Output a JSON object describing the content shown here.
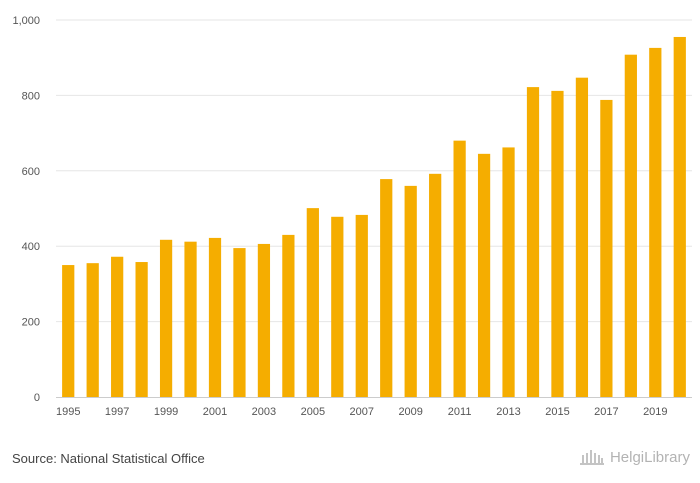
{
  "chart_data": {
    "type": "bar",
    "title": "",
    "xlabel": "",
    "ylabel": "",
    "x": [
      1995,
      1996,
      1997,
      1998,
      1999,
      2000,
      2001,
      2002,
      2003,
      2004,
      2005,
      2006,
      2007,
      2008,
      2009,
      2010,
      2011,
      2012,
      2013,
      2014,
      2015,
      2016,
      2017,
      2018,
      2019,
      2020
    ],
    "values": [
      350,
      355,
      372,
      358,
      417,
      412,
      422,
      395,
      406,
      430,
      501,
      478,
      483,
      578,
      560,
      592,
      680,
      645,
      662,
      822,
      812,
      847,
      788,
      908,
      926,
      955
    ],
    "x_tick_labels": [
      "1995",
      "1997",
      "1999",
      "2001",
      "2003",
      "2005",
      "2007",
      "2009",
      "2011",
      "2013",
      "2015",
      "2017",
      "2019"
    ],
    "ylim": [
      0,
      1000
    ],
    "y_ticks": [
      0,
      200,
      400,
      600,
      800,
      1000
    ],
    "y_tick_labels": [
      "0",
      "200",
      "400",
      "600",
      "800",
      "1,000"
    ],
    "grid": true,
    "bar_color": "#f5ad00",
    "grid_color": "#e6e6e6"
  },
  "footer": {
    "source": "Source: National Statistical Office",
    "logo_text": "HelgiLibrary"
  }
}
